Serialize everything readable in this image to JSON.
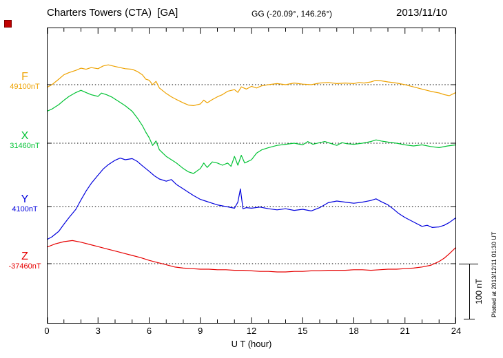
{
  "header": {
    "title": "Charters Towers (CTA)  [GA]",
    "coords": "GG (-20.09°, 146.26°)",
    "date": "2013/11/10"
  },
  "axis": {
    "xlabel": "U T (hour)"
  },
  "scale": {
    "label": "100 nT"
  },
  "footer": {
    "plotted_at": "Plotted at 2013/12/11 01:30 UT"
  },
  "chart_data": {
    "type": "line",
    "title": "Charters Towers (CTA)  [GA]",
    "subtitle": "GG (-20.09°, 146.26°)",
    "date": "2013/11/10",
    "xlabel": "U T (hour)",
    "xlim": [
      0,
      24
    ],
    "x_ticks": [
      0,
      3,
      6,
      9,
      12,
      15,
      18,
      21,
      24
    ],
    "grid": "dotted horizontal baseline per component",
    "scale_bar_nT": 100,
    "plotted_at": "Plotted at 2013/12/11 01:30 UT",
    "series": [
      {
        "name": "F",
        "baseline_label": "49100nT",
        "baseline_nT": 49100,
        "color": "#eea200",
        "points": [
          [
            0,
            -5
          ],
          [
            0.3,
            0
          ],
          [
            0.7,
            10
          ],
          [
            1,
            18
          ],
          [
            1.3,
            22
          ],
          [
            1.7,
            26
          ],
          [
            2,
            30
          ],
          [
            2.3,
            28
          ],
          [
            2.6,
            31
          ],
          [
            3,
            29
          ],
          [
            3.3,
            34
          ],
          [
            3.6,
            36
          ],
          [
            4,
            33
          ],
          [
            4.3,
            31
          ],
          [
            4.6,
            29
          ],
          [
            5,
            28
          ],
          [
            5.3,
            24
          ],
          [
            5.6,
            18
          ],
          [
            5.8,
            10
          ],
          [
            6,
            8
          ],
          [
            6.2,
            0
          ],
          [
            6.4,
            6
          ],
          [
            6.6,
            -6
          ],
          [
            7,
            -16
          ],
          [
            7.3,
            -22
          ],
          [
            7.6,
            -27
          ],
          [
            8,
            -33
          ],
          [
            8.3,
            -37
          ],
          [
            8.6,
            -38
          ],
          [
            9,
            -35
          ],
          [
            9.2,
            -28
          ],
          [
            9.4,
            -33
          ],
          [
            9.7,
            -27
          ],
          [
            10,
            -22
          ],
          [
            10.3,
            -18
          ],
          [
            10.6,
            -12
          ],
          [
            11,
            -9
          ],
          [
            11.2,
            -14
          ],
          [
            11.4,
            -4
          ],
          [
            11.7,
            -8
          ],
          [
            12,
            -3
          ],
          [
            12.3,
            -6
          ],
          [
            12.6,
            -2
          ],
          [
            13,
            0
          ],
          [
            13.5,
            2
          ],
          [
            14,
            0
          ],
          [
            14.5,
            3
          ],
          [
            15,
            1
          ],
          [
            15.5,
            0
          ],
          [
            16,
            3
          ],
          [
            16.5,
            4
          ],
          [
            17,
            2
          ],
          [
            17.5,
            3
          ],
          [
            18,
            2
          ],
          [
            18.3,
            4
          ],
          [
            18.6,
            3
          ],
          [
            19,
            5
          ],
          [
            19.3,
            8
          ],
          [
            19.6,
            7
          ],
          [
            20,
            5
          ],
          [
            20.5,
            3
          ],
          [
            21,
            0
          ],
          [
            21.5,
            -4
          ],
          [
            22,
            -8
          ],
          [
            22.5,
            -12
          ],
          [
            23,
            -15
          ],
          [
            23.3,
            -18
          ],
          [
            23.6,
            -20
          ],
          [
            24,
            -14
          ]
        ]
      },
      {
        "name": "X",
        "baseline_label": "31460nT",
        "baseline_nT": 31460,
        "color": "#00c233",
        "points": [
          [
            0,
            58
          ],
          [
            0.3,
            62
          ],
          [
            0.7,
            70
          ],
          [
            1,
            78
          ],
          [
            1.3,
            85
          ],
          [
            1.7,
            92
          ],
          [
            2,
            96
          ],
          [
            2.3,
            92
          ],
          [
            2.6,
            88
          ],
          [
            3,
            85
          ],
          [
            3.2,
            91
          ],
          [
            3.5,
            88
          ],
          [
            3.8,
            84
          ],
          [
            4,
            80
          ],
          [
            4.3,
            74
          ],
          [
            4.6,
            68
          ],
          [
            5,
            58
          ],
          [
            5.3,
            46
          ],
          [
            5.6,
            32
          ],
          [
            5.8,
            20
          ],
          [
            6,
            10
          ],
          [
            6.2,
            -4
          ],
          [
            6.4,
            4
          ],
          [
            6.6,
            -12
          ],
          [
            6.8,
            -18
          ],
          [
            7,
            -24
          ],
          [
            7.3,
            -30
          ],
          [
            7.6,
            -36
          ],
          [
            8,
            -46
          ],
          [
            8.3,
            -52
          ],
          [
            8.6,
            -55
          ],
          [
            9,
            -46
          ],
          [
            9.2,
            -36
          ],
          [
            9.4,
            -44
          ],
          [
            9.7,
            -34
          ],
          [
            10,
            -36
          ],
          [
            10.3,
            -40
          ],
          [
            10.6,
            -36
          ],
          [
            10.8,
            -42
          ],
          [
            11,
            -24
          ],
          [
            11.2,
            -40
          ],
          [
            11.4,
            -22
          ],
          [
            11.6,
            -36
          ],
          [
            12,
            -30
          ],
          [
            12.3,
            -18
          ],
          [
            12.6,
            -12
          ],
          [
            13,
            -8
          ],
          [
            13.5,
            -4
          ],
          [
            14,
            -2
          ],
          [
            14.5,
            0
          ],
          [
            15,
            -3
          ],
          [
            15.3,
            3
          ],
          [
            15.6,
            -2
          ],
          [
            16,
            1
          ],
          [
            16.3,
            3
          ],
          [
            16.6,
            0
          ],
          [
            17,
            -4
          ],
          [
            17.3,
            1
          ],
          [
            17.6,
            -1
          ],
          [
            18,
            -2
          ],
          [
            18.5,
            0
          ],
          [
            19,
            3
          ],
          [
            19.3,
            6
          ],
          [
            19.6,
            4
          ],
          [
            20,
            2
          ],
          [
            20.5,
            0
          ],
          [
            21,
            -3
          ],
          [
            21.5,
            -5
          ],
          [
            22,
            -3
          ],
          [
            22.5,
            -6
          ],
          [
            23,
            -8
          ],
          [
            23.5,
            -5
          ],
          [
            24,
            -3
          ]
        ]
      },
      {
        "name": "Y",
        "baseline_label": "4100nT",
        "baseline_nT": 4100,
        "color": "#0000dd",
        "points": [
          [
            0,
            -60
          ],
          [
            0.3,
            -55
          ],
          [
            0.7,
            -45
          ],
          [
            1,
            -32
          ],
          [
            1.3,
            -20
          ],
          [
            1.7,
            -5
          ],
          [
            2,
            12
          ],
          [
            2.3,
            28
          ],
          [
            2.6,
            42
          ],
          [
            3,
            57
          ],
          [
            3.3,
            68
          ],
          [
            3.6,
            76
          ],
          [
            4,
            84
          ],
          [
            4.3,
            88
          ],
          [
            4.6,
            85
          ],
          [
            5,
            87
          ],
          [
            5.3,
            82
          ],
          [
            5.6,
            74
          ],
          [
            6,
            64
          ],
          [
            6.3,
            56
          ],
          [
            6.6,
            50
          ],
          [
            7,
            46
          ],
          [
            7.3,
            49
          ],
          [
            7.6,
            40
          ],
          [
            8,
            32
          ],
          [
            8.3,
            26
          ],
          [
            8.6,
            20
          ],
          [
            9,
            13
          ],
          [
            9.3,
            10
          ],
          [
            9.6,
            7
          ],
          [
            10,
            3
          ],
          [
            10.5,
            0
          ],
          [
            11,
            -3
          ],
          [
            11.2,
            8
          ],
          [
            11.35,
            32
          ],
          [
            11.5,
            -4
          ],
          [
            11.7,
            -2
          ],
          [
            12,
            -3
          ],
          [
            12.5,
            -1
          ],
          [
            13,
            -4
          ],
          [
            13.5,
            -6
          ],
          [
            14,
            -4
          ],
          [
            14.5,
            -7
          ],
          [
            15,
            -5
          ],
          [
            15.5,
            -8
          ],
          [
            16,
            -2
          ],
          [
            16.5,
            7
          ],
          [
            17,
            10
          ],
          [
            17.5,
            8
          ],
          [
            18,
            6
          ],
          [
            18.5,
            8
          ],
          [
            19,
            11
          ],
          [
            19.3,
            14
          ],
          [
            19.6,
            9
          ],
          [
            20,
            3
          ],
          [
            20.3,
            -4
          ],
          [
            20.6,
            -12
          ],
          [
            21,
            -20
          ],
          [
            21.5,
            -28
          ],
          [
            22,
            -36
          ],
          [
            22.3,
            -34
          ],
          [
            22.6,
            -38
          ],
          [
            23,
            -37
          ],
          [
            23.3,
            -34
          ],
          [
            23.6,
            -29
          ],
          [
            24,
            -20
          ]
        ]
      },
      {
        "name": "Z",
        "baseline_label": "-37460nT",
        "baseline_nT": -37460,
        "color": "#e60000",
        "points": [
          [
            0,
            30
          ],
          [
            0.5,
            36
          ],
          [
            1,
            40
          ],
          [
            1.5,
            42
          ],
          [
            2,
            39
          ],
          [
            2.5,
            35
          ],
          [
            3,
            31
          ],
          [
            3.5,
            27
          ],
          [
            4,
            23
          ],
          [
            4.5,
            19
          ],
          [
            5,
            15
          ],
          [
            5.5,
            11
          ],
          [
            6,
            6
          ],
          [
            6.5,
            2
          ],
          [
            7,
            -2
          ],
          [
            7.5,
            -6
          ],
          [
            8,
            -8
          ],
          [
            8.5,
            -9
          ],
          [
            9,
            -10
          ],
          [
            9.5,
            -10
          ],
          [
            10,
            -11
          ],
          [
            10.5,
            -11
          ],
          [
            11,
            -12
          ],
          [
            11.5,
            -12
          ],
          [
            12,
            -13
          ],
          [
            12.5,
            -14
          ],
          [
            13,
            -14
          ],
          [
            13.5,
            -15
          ],
          [
            14,
            -15
          ],
          [
            14.5,
            -14
          ],
          [
            15,
            -14
          ],
          [
            15.5,
            -13
          ],
          [
            16,
            -13
          ],
          [
            16.5,
            -12
          ],
          [
            17,
            -12
          ],
          [
            17.5,
            -12
          ],
          [
            18,
            -11
          ],
          [
            18.5,
            -11
          ],
          [
            19,
            -12
          ],
          [
            19.5,
            -11
          ],
          [
            20,
            -10
          ],
          [
            20.5,
            -10
          ],
          [
            21,
            -9
          ],
          [
            21.5,
            -8
          ],
          [
            22,
            -6
          ],
          [
            22.5,
            -3
          ],
          [
            23,
            4
          ],
          [
            23.3,
            10
          ],
          [
            23.6,
            18
          ],
          [
            24,
            30
          ]
        ]
      }
    ]
  }
}
